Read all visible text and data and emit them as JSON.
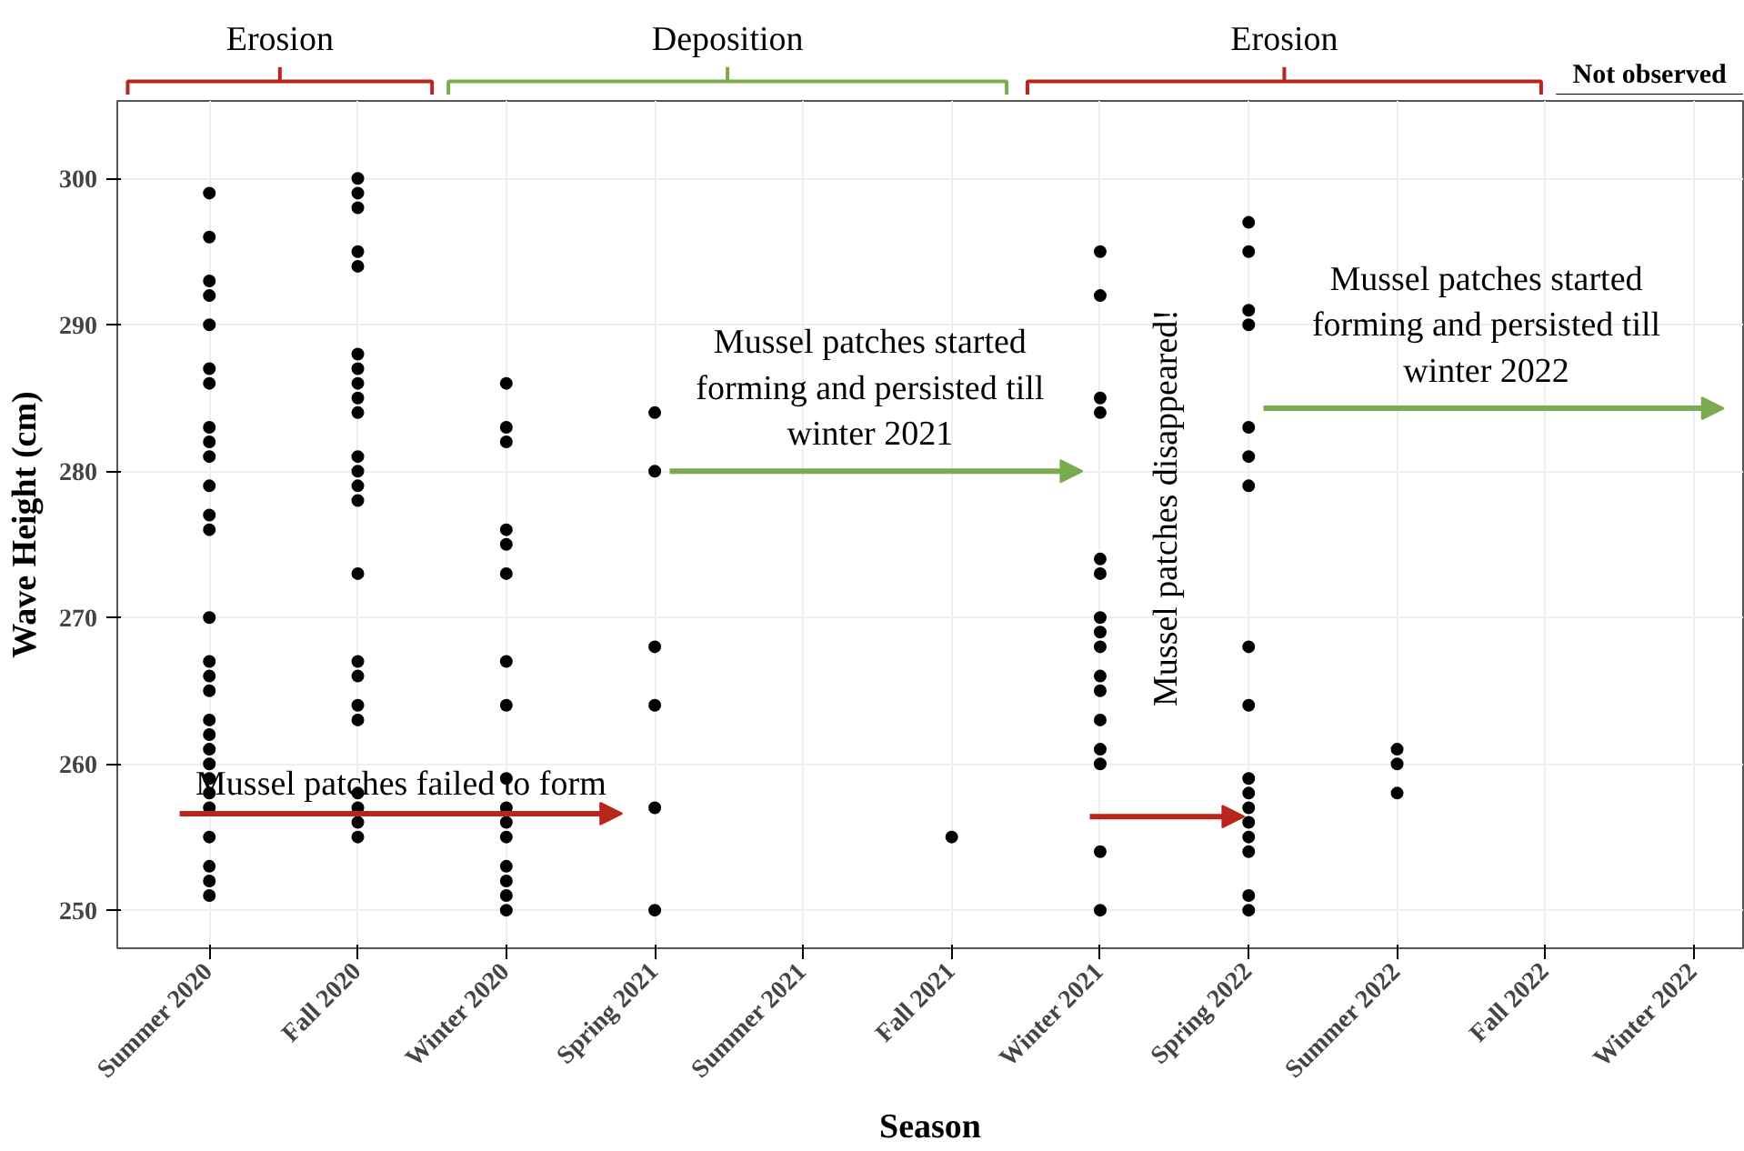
{
  "chart_data": {
    "type": "scatter",
    "xlabel": "Season",
    "ylabel": "Wave Height (cm)",
    "categories": [
      "Summer 2020",
      "Fall 2020",
      "Winter 2020",
      "Spring 2021",
      "Summer 2021",
      "Fall 2021",
      "Winter 2021",
      "Spring 2022",
      "Summer 2022",
      "Fall 2022",
      "Winter 2022"
    ],
    "ylim": [
      247.4,
      305.3
    ],
    "yticks": [
      250,
      260,
      270,
      280,
      290,
      300
    ],
    "grid": true,
    "marker": "circle",
    "series": [
      {
        "color": "#000000",
        "x": [
          "Summer 2020",
          "Summer 2020",
          "Summer 2020",
          "Summer 2020",
          "Summer 2020",
          "Summer 2020",
          "Summer 2020",
          "Summer 2020",
          "Summer 2020",
          "Summer 2020",
          "Summer 2020",
          "Summer 2020",
          "Summer 2020",
          "Summer 2020",
          "Summer 2020",
          "Summer 2020",
          "Summer 2020",
          "Summer 2020",
          "Summer 2020",
          "Summer 2020",
          "Summer 2020",
          "Summer 2020",
          "Summer 2020",
          "Summer 2020",
          "Summer 2020",
          "Summer 2020",
          "Summer 2020",
          "Summer 2020",
          "Fall 2020",
          "Fall 2020",
          "Fall 2020",
          "Fall 2020",
          "Fall 2020",
          "Fall 2020",
          "Fall 2020",
          "Fall 2020",
          "Fall 2020",
          "Fall 2020",
          "Fall 2020",
          "Fall 2020",
          "Fall 2020",
          "Fall 2020",
          "Fall 2020",
          "Fall 2020",
          "Fall 2020",
          "Fall 2020",
          "Fall 2020",
          "Fall 2020",
          "Fall 2020",
          "Fall 2020",
          "Fall 2020",
          "Winter 2020",
          "Winter 2020",
          "Winter 2020",
          "Winter 2020",
          "Winter 2020",
          "Winter 2020",
          "Winter 2020",
          "Winter 2020",
          "Winter 2020",
          "Winter 2020",
          "Winter 2020",
          "Winter 2020",
          "Winter 2020",
          "Winter 2020",
          "Winter 2020",
          "Winter 2020",
          "Spring 2021",
          "Spring 2021",
          "Spring 2021",
          "Spring 2021",
          "Spring 2021",
          "Spring 2021",
          "Fall 2021",
          "Winter 2021",
          "Winter 2021",
          "Winter 2021",
          "Winter 2021",
          "Winter 2021",
          "Winter 2021",
          "Winter 2021",
          "Winter 2021",
          "Winter 2021",
          "Winter 2021",
          "Winter 2021",
          "Winter 2021",
          "Winter 2021",
          "Winter 2021",
          "Winter 2021",
          "Winter 2021",
          "Spring 2022",
          "Spring 2022",
          "Spring 2022",
          "Spring 2022",
          "Spring 2022",
          "Spring 2022",
          "Spring 2022",
          "Spring 2022",
          "Spring 2022",
          "Spring 2022",
          "Spring 2022",
          "Spring 2022",
          "Spring 2022",
          "Spring 2022",
          "Spring 2022",
          "Spring 2022",
          "Spring 2022",
          "Summer 2022",
          "Summer 2022",
          "Summer 2022"
        ],
        "values": [
          299,
          296,
          293,
          292,
          290,
          287,
          286,
          283,
          282,
          281,
          279,
          277,
          276,
          270,
          267,
          266,
          265,
          263,
          262,
          261,
          260,
          259,
          258,
          257,
          255,
          253,
          252,
          251,
          300,
          299,
          298,
          295,
          294,
          288,
          287,
          286,
          285,
          284,
          281,
          280,
          279,
          278,
          273,
          267,
          266,
          264,
          263,
          258,
          257,
          256,
          255,
          286,
          283,
          282,
          276,
          275,
          273,
          267,
          264,
          259,
          257,
          256,
          255,
          253,
          252,
          251,
          250,
          284,
          280,
          268,
          264,
          257,
          250,
          255,
          295,
          292,
          285,
          284,
          274,
          273,
          270,
          269,
          268,
          266,
          265,
          263,
          261,
          260,
          254,
          250,
          297,
          295,
          291,
          290,
          283,
          281,
          279,
          268,
          264,
          259,
          258,
          257,
          256,
          255,
          254,
          251,
          250,
          261,
          260,
          258
        ]
      }
    ],
    "annotations": [
      "Erosion",
      "Deposition",
      "Erosion",
      "Not observed",
      "Mussel patches failed to form",
      "Mussel patches started\nforming and persisted till\nwinter 2021",
      "Mussel patches disappeared!",
      "Mussel patches started\nforming and persisted till\nwinter 2022"
    ]
  }
}
